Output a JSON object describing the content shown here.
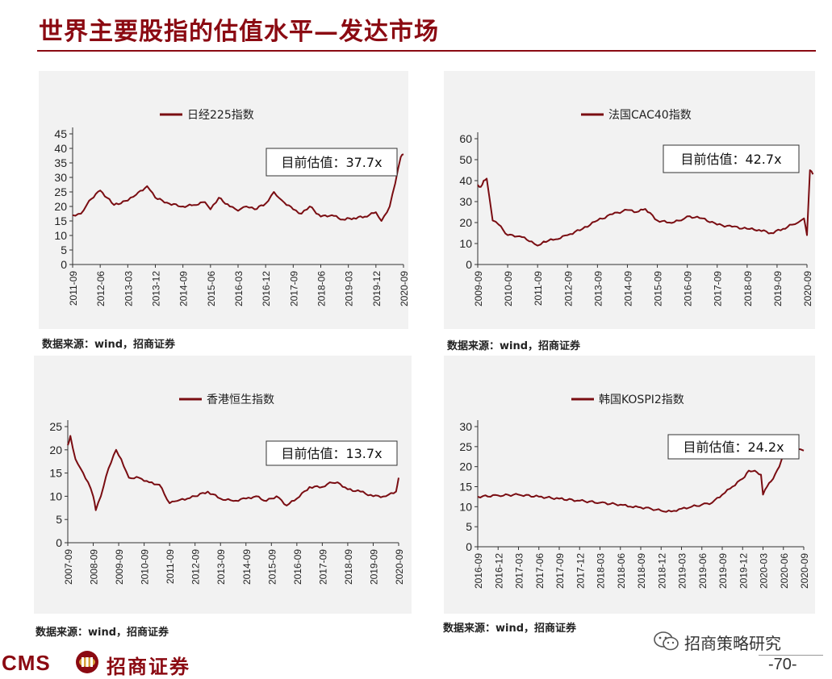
{
  "page": {
    "title": "世界主要股指的估值水平—发达市场",
    "page_number": "-70-",
    "brand_en": "CMS",
    "brand_cn": "招商证券",
    "wechat_label": "招商策略研究",
    "colors": {
      "accent": "#8B0A12",
      "panel_bg": "#f2f2f2",
      "line": "#7a0d12"
    }
  },
  "chart_data": [
    {
      "type": "line",
      "legend": "日经225指数",
      "annotation": "目前估值：37.7x",
      "source": "数据来源：wind，招商证券",
      "yticks": [
        0,
        5,
        10,
        15,
        20,
        25,
        30,
        35,
        40,
        45
      ],
      "ylim": [
        0,
        45
      ],
      "xticks": [
        "2011-09",
        "2012-06",
        "2013-03",
        "2013-12",
        "2014-09",
        "2015-06",
        "2016-03",
        "2016-12",
        "2017-09",
        "2018-06",
        "2019-03",
        "2019-12",
        "2020-09"
      ],
      "x": [
        0,
        0.3,
        0.6,
        1,
        1.5,
        2,
        2.3,
        2.7,
        3,
        3.5,
        4,
        4.4,
        4.8,
        5,
        5.3,
        5.7,
        6,
        6.3,
        6.6,
        7,
        7.3,
        7.6,
        8,
        8.3,
        8.6,
        9,
        9.4,
        9.8,
        10.2,
        10.6,
        11,
        11.2,
        11.5,
        11.7,
        11.9,
        12
      ],
      "values": [
        17,
        17.5,
        22,
        25.5,
        20.5,
        22,
        24,
        27,
        23,
        21,
        20,
        20.5,
        21.5,
        19,
        23,
        20,
        18.5,
        20,
        19,
        21,
        25,
        22,
        19,
        17.5,
        20,
        16.5,
        17,
        15.5,
        16,
        16.5,
        18,
        15,
        20,
        28,
        37,
        38
      ]
    },
    {
      "type": "line",
      "legend": "法国CAC40指数",
      "annotation": "目前估值：42.7x",
      "source": "数据来源：wind，招商证券",
      "yticks": [
        0,
        10,
        20,
        30,
        40,
        50,
        60
      ],
      "ylim": [
        0,
        60
      ],
      "xticks": [
        "2009-09",
        "2010-09",
        "2011-09",
        "2012-09",
        "2013-09",
        "2014-09",
        "2015-09",
        "2016-09",
        "2017-09",
        "2018-09",
        "2019-09",
        "2020-09"
      ],
      "x": [
        0,
        0.1,
        0.2,
        0.3,
        0.5,
        0.7,
        1,
        1.4,
        1.8,
        2,
        2.2,
        2.6,
        3,
        3.5,
        4,
        4.5,
        5,
        5.3,
        5.6,
        6,
        6.4,
        6.8,
        7,
        7.5,
        8,
        8.5,
        9,
        9.4,
        9.8,
        10.2,
        10.5,
        10.7,
        10.9,
        11,
        11.1,
        11.2
      ],
      "values": [
        38,
        37,
        40,
        41,
        21,
        19,
        14,
        13.5,
        11,
        9,
        11,
        12,
        14,
        17,
        21,
        24,
        26,
        25,
        26.5,
        21,
        20,
        21,
        23,
        22,
        19,
        18,
        17,
        16.5,
        15,
        17,
        19,
        20,
        22,
        14,
        45,
        43
      ]
    },
    {
      "type": "line",
      "legend": "香港恒生指数",
      "annotation": "目前估值：13.7x",
      "source": "数据来源：wind，招商证券",
      "yticks": [
        0,
        5,
        10,
        15,
        20,
        25
      ],
      "ylim": [
        0,
        25
      ],
      "xticks": [
        "2007-09",
        "2008-09",
        "2009-09",
        "2010-09",
        "2011-09",
        "2012-09",
        "2013-09",
        "2014-09",
        "2015-09",
        "2016-09",
        "2017-09",
        "2018-09",
        "2019-09",
        "2020-09"
      ],
      "x": [
        0,
        0.1,
        0.3,
        0.5,
        0.8,
        1,
        1.1,
        1.3,
        1.6,
        1.9,
        2.1,
        2.4,
        2.8,
        3.2,
        3.6,
        4,
        4.3,
        4.7,
        5,
        5.5,
        6,
        6.5,
        7,
        7.4,
        7.8,
        8.2,
        8.6,
        9,
        9.5,
        10,
        10.3,
        10.6,
        11,
        11.5,
        12,
        12.5,
        12.9,
        13
      ],
      "values": [
        21,
        23,
        18,
        16,
        13,
        10,
        7,
        10,
        16,
        20,
        18,
        14,
        14,
        13,
        12.5,
        8.5,
        9,
        9.5,
        10,
        11,
        9.5,
        9,
        9.5,
        10,
        9,
        10,
        8,
        9.5,
        12,
        12,
        13,
        13,
        11.5,
        11,
        10,
        10,
        11,
        14
      ]
    },
    {
      "type": "line",
      "legend": "韩国KOSPI2指数",
      "annotation": "目前估值：24.2x",
      "source": "数据来源：wind，招商证券",
      "yticks": [
        0,
        5,
        10,
        15,
        20,
        25,
        30
      ],
      "ylim": [
        0,
        30
      ],
      "xticks": [
        "2016-09",
        "2016-12",
        "2017-03",
        "2017-06",
        "2017-09",
        "2017-12",
        "2018-03",
        "2018-06",
        "2018-09",
        "2018-12",
        "2019-03",
        "2019-06",
        "2019-09",
        "2019-12",
        "2020-03",
        "2020-06",
        "2020-09"
      ],
      "x": [
        0,
        1,
        2,
        3,
        4,
        5,
        6,
        7,
        7.5,
        8,
        8.5,
        9,
        9.5,
        10,
        10.5,
        11,
        11.5,
        12,
        12.5,
        13,
        13.3,
        13.6,
        13.9,
        14,
        14.2,
        14.5,
        14.8,
        15,
        15.3,
        15.6,
        16
      ],
      "values": [
        12.5,
        12.8,
        13,
        12.5,
        12,
        11.5,
        11,
        10.5,
        10,
        9.8,
        9.5,
        9,
        8.8,
        9.5,
        10,
        10.5,
        11,
        13,
        15,
        17,
        19,
        19,
        18,
        13,
        15,
        17,
        20,
        23,
        24.5,
        25,
        24
      ]
    }
  ]
}
